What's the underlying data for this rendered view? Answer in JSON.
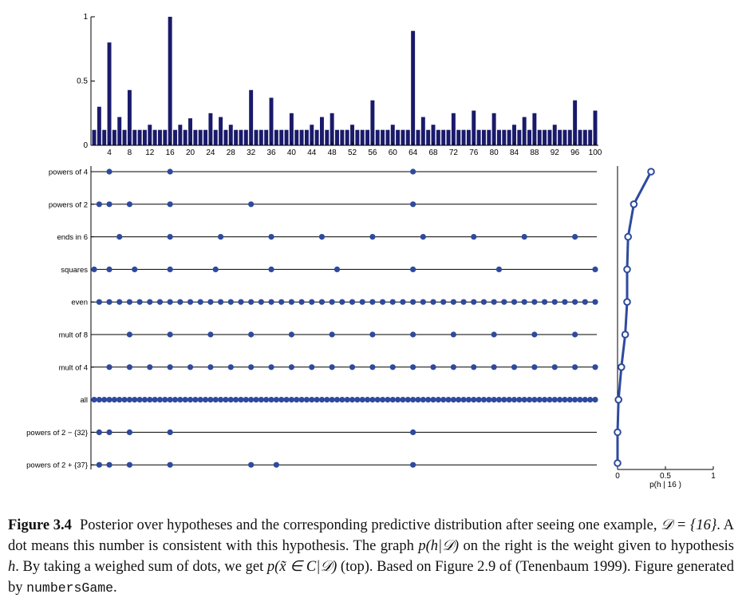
{
  "chart_data": [
    {
      "type": "bar",
      "x": [
        1,
        2,
        3,
        4,
        5,
        6,
        7,
        8,
        9,
        10,
        11,
        12,
        13,
        14,
        15,
        16,
        17,
        18,
        19,
        20,
        21,
        22,
        23,
        24,
        25,
        26,
        27,
        28,
        29,
        30,
        31,
        32,
        33,
        34,
        35,
        36,
        37,
        38,
        39,
        40,
        41,
        42,
        43,
        44,
        45,
        46,
        47,
        48,
        49,
        50,
        51,
        52,
        53,
        54,
        55,
        56,
        57,
        58,
        59,
        60,
        61,
        62,
        63,
        64,
        65,
        66,
        67,
        68,
        69,
        70,
        71,
        72,
        73,
        74,
        75,
        76,
        77,
        78,
        79,
        80,
        81,
        82,
        83,
        84,
        85,
        86,
        87,
        88,
        89,
        90,
        91,
        92,
        93,
        94,
        95,
        96,
        97,
        98,
        99,
        100
      ],
      "values": [
        0.12,
        0.3,
        0.12,
        0.8,
        0.12,
        0.22,
        0.12,
        0.43,
        0.12,
        0.12,
        0.12,
        0.16,
        0.12,
        0.12,
        0.12,
        1.0,
        0.12,
        0.16,
        0.12,
        0.21,
        0.12,
        0.12,
        0.12,
        0.25,
        0.12,
        0.22,
        0.12,
        0.16,
        0.12,
        0.12,
        0.12,
        0.43,
        0.12,
        0.12,
        0.12,
        0.37,
        0.12,
        0.12,
        0.12,
        0.25,
        0.12,
        0.12,
        0.12,
        0.16,
        0.12,
        0.22,
        0.12,
        0.25,
        0.12,
        0.12,
        0.12,
        0.16,
        0.12,
        0.12,
        0.12,
        0.35,
        0.12,
        0.12,
        0.12,
        0.16,
        0.12,
        0.12,
        0.12,
        0.89,
        0.12,
        0.22,
        0.12,
        0.16,
        0.12,
        0.12,
        0.12,
        0.25,
        0.12,
        0.12,
        0.12,
        0.27,
        0.12,
        0.12,
        0.12,
        0.25,
        0.12,
        0.12,
        0.12,
        0.16,
        0.12,
        0.22,
        0.12,
        0.25,
        0.12,
        0.12,
        0.12,
        0.16,
        0.12,
        0.12,
        0.12,
        0.35,
        0.12,
        0.12,
        0.12,
        0.27
      ],
      "xticks": [
        "4",
        "8",
        "12",
        "16",
        "20",
        "24",
        "28",
        "32",
        "36",
        "40",
        "44",
        "48",
        "52",
        "56",
        "60",
        "64",
        "68",
        "72",
        "76",
        "80",
        "84",
        "88",
        "92",
        "96",
        "100"
      ],
      "yticks": [
        "0",
        "0.5",
        "1"
      ],
      "ylim": [
        0,
        1
      ],
      "color": "#1a1a6b"
    },
    {
      "type": "scatter",
      "hypotheses": [
        {
          "label": "powers of 4",
          "members": [
            4,
            16,
            64
          ]
        },
        {
          "label": "powers of 2",
          "members": [
            2,
            4,
            8,
            16,
            32,
            64
          ]
        },
        {
          "label": "ends in 6",
          "members": [
            6,
            16,
            26,
            36,
            46,
            56,
            66,
            76,
            86,
            96
          ]
        },
        {
          "label": "squares",
          "members": [
            1,
            4,
            9,
            16,
            25,
            36,
            49,
            64,
            81,
            100
          ]
        },
        {
          "label": "even",
          "members": "even-1-100"
        },
        {
          "label": "mult of 8",
          "members": [
            8,
            16,
            24,
            32,
            40,
            48,
            56,
            64,
            72,
            80,
            88,
            96
          ]
        },
        {
          "label": "mult of 4",
          "members": "mult4-1-100"
        },
        {
          "label": "all",
          "members": "all-1-100"
        },
        {
          "label": "powers of 2 − {32}",
          "members": [
            2,
            4,
            8,
            16,
            64
          ]
        },
        {
          "label": "powers of 2 + {37}",
          "members": [
            2,
            4,
            8,
            16,
            32,
            37,
            64
          ]
        }
      ],
      "xlim": [
        1,
        100
      ],
      "color": "#2e4a9e"
    },
    {
      "type": "line",
      "values": [
        0.35,
        0.17,
        0.11,
        0.1,
        0.1,
        0.08,
        0.04,
        0.01,
        0.0,
        0.0
      ],
      "xlim": [
        0,
        1
      ],
      "xticks": [
        "0",
        "0.5",
        "1"
      ],
      "xlabel": "p(h | 16 )",
      "color": "#2e4a9e"
    }
  ],
  "caption": {
    "label": "Figure 3.4",
    "t1": "Posterior over hypotheses and the corresponding predictive distribution after seeing one example, ",
    "m1": "𝒟 = {16}",
    "t2": ". A dot means this number is consistent with this hypothesis. The graph ",
    "m2": "p(h|𝒟)",
    "t3": " on the right is the weight given to hypothesis ",
    "m3": "h",
    "t4": ". By taking a weighed sum of dots, we get ",
    "m4": "p(x̃ ∈ C|𝒟)",
    "t5": " (top). Based on Figure 2.9 of (Tenenbaum 1999). Figure generated by ",
    "code": "numbersGame",
    "t6": "."
  }
}
